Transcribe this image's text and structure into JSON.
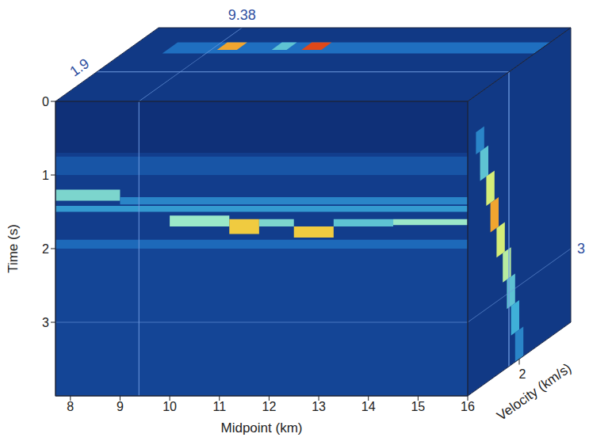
{
  "chart_data": {
    "type": "heatmap",
    "x_label": "Midpoint (km)",
    "y_label": "Time (s)",
    "z_label": "Velocity (km/s)",
    "xlim": [
      7.7,
      16
    ],
    "xticks": [
      8,
      9,
      10,
      11,
      12,
      13,
      14,
      15,
      16
    ],
    "ylim": [
      0,
      4
    ],
    "yticks": [
      0,
      1,
      2,
      3
    ],
    "zlim": [
      1.5,
      2.5
    ],
    "zticks": [
      2
    ],
    "slices": {
      "midpoint": 9.38,
      "velocity": 1.9,
      "time": 3
    },
    "value_range": [
      0,
      1
    ],
    "front_cells": [
      {
        "x": [
          7.7,
          16
        ],
        "y": [
          0,
          4
        ],
        "value": 0.14
      },
      {
        "x": [
          7.7,
          16
        ],
        "y": [
          0,
          0.7
        ],
        "value": 0.08
      },
      {
        "x": [
          7.7,
          16
        ],
        "y": [
          0.75,
          1.0
        ],
        "value": 0.22
      },
      {
        "x": [
          7.7,
          16
        ],
        "y": [
          2.0,
          4
        ],
        "value": 0.17
      },
      {
        "x": [
          7.7,
          9
        ],
        "y": [
          1.2,
          1.35
        ],
        "value": 0.55
      },
      {
        "x": [
          9,
          16
        ],
        "y": [
          1.3,
          1.4
        ],
        "value": 0.35
      },
      {
        "x": [
          7.7,
          16
        ],
        "y": [
          1.42,
          1.5
        ],
        "value": 0.4
      },
      {
        "x": [
          10,
          11.2
        ],
        "y": [
          1.55,
          1.7
        ],
        "value": 0.6
      },
      {
        "x": [
          11.2,
          11.8
        ],
        "y": [
          1.6,
          1.8
        ],
        "value": 0.8
      },
      {
        "x": [
          11.8,
          12.5
        ],
        "y": [
          1.6,
          1.7
        ],
        "value": 0.55
      },
      {
        "x": [
          12.5,
          13.3
        ],
        "y": [
          1.7,
          1.85
        ],
        "value": 0.8
      },
      {
        "x": [
          13.3,
          14.5
        ],
        "y": [
          1.6,
          1.7
        ],
        "value": 0.5
      },
      {
        "x": [
          14.5,
          16
        ],
        "y": [
          1.6,
          1.68
        ],
        "value": 0.6
      },
      {
        "x": [
          7.7,
          16
        ],
        "y": [
          1.88,
          2.0
        ],
        "value": 0.28
      }
    ],
    "top_cells": [
      {
        "x": [
          7.7,
          16
        ],
        "z": [
          1.5,
          2.5
        ],
        "value": 0.12
      },
      {
        "x": [
          8.5,
          16
        ],
        "z": [
          2.15,
          2.3
        ],
        "value": 0.3
      },
      {
        "x": [
          9.5,
          9.9
        ],
        "z": [
          2.2,
          2.3
        ],
        "value": 0.85
      },
      {
        "x": [
          10.6,
          10.9
        ],
        "z": [
          2.2,
          2.3
        ],
        "value": 0.5
      },
      {
        "x": [
          11.2,
          11.6
        ],
        "z": [
          2.2,
          2.3
        ],
        "value": 0.95
      }
    ],
    "side_cells": [
      {
        "z": [
          1.5,
          2.5
        ],
        "y": [
          0,
          4
        ],
        "value": 0.12
      },
      {
        "z": [
          1.58,
          1.66
        ],
        "y": [
          0.5,
          0.8
        ],
        "value": 0.35
      },
      {
        "z": [
          1.62,
          1.7
        ],
        "y": [
          0.8,
          1.2
        ],
        "value": 0.5
      },
      {
        "z": [
          1.68,
          1.76
        ],
        "y": [
          1.2,
          1.6
        ],
        "value": 0.7
      },
      {
        "z": [
          1.72,
          1.8
        ],
        "y": [
          1.6,
          2.0
        ],
        "value": 0.85
      },
      {
        "z": [
          1.78,
          1.86
        ],
        "y": [
          2.0,
          2.4
        ],
        "value": 0.7
      },
      {
        "z": [
          1.84,
          1.92
        ],
        "y": [
          2.4,
          2.8
        ],
        "value": 0.65
      },
      {
        "z": [
          1.88,
          1.96
        ],
        "y": [
          2.8,
          3.2
        ],
        "value": 0.5
      },
      {
        "z": [
          1.92,
          2.0
        ],
        "y": [
          3.2,
          3.6
        ],
        "value": 0.45
      },
      {
        "z": [
          1.96,
          2.04
        ],
        "y": [
          3.6,
          4.0
        ],
        "value": 0.35
      }
    ]
  }
}
